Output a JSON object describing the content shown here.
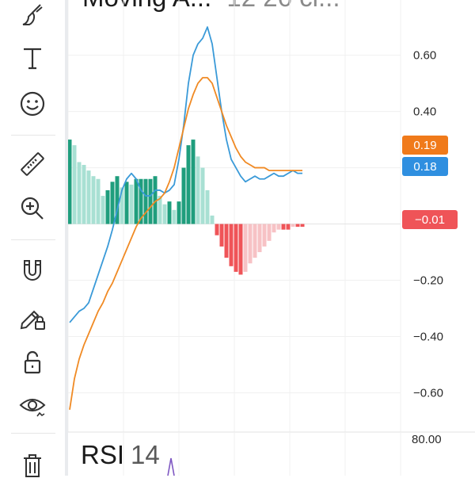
{
  "toolbar": {
    "tools": [
      {
        "icon": "brush-icon",
        "label": "Brush"
      },
      {
        "icon": "text-icon",
        "label": "Text"
      },
      {
        "icon": "emoji-icon",
        "label": "Emoji"
      },
      {
        "icon": "ruler-icon",
        "label": "Measure"
      },
      {
        "icon": "zoom-in-icon",
        "label": "Zoom In"
      },
      {
        "icon": "magnet-icon",
        "label": "Magnet"
      },
      {
        "icon": "lock-drawing-icon",
        "label": "Lock Drawings"
      },
      {
        "icon": "unlock-icon",
        "label": "Lock"
      },
      {
        "icon": "eye-icon",
        "label": "Hide"
      },
      {
        "icon": "trash-icon",
        "label": "Remove"
      }
    ]
  },
  "pane": {
    "title": "Moving A...",
    "params": "12 26 cl..."
  },
  "badges": {
    "signal": {
      "text": "0.19",
      "color": "#f07a1a"
    },
    "macd": {
      "text": "0.18",
      "color": "#2f8fe0"
    },
    "histogram": {
      "text": "−0.01",
      "color": "#ef5458"
    }
  },
  "rsi": {
    "name": "RSI",
    "length": "14",
    "top_label": "80.00"
  },
  "chart_data": {
    "type": "line",
    "title": "",
    "ylim": [
      -0.7,
      0.72
    ],
    "y_ticks": [
      0.6,
      0.4,
      0.2,
      -0.2,
      -0.4,
      -0.6
    ],
    "y_tick_labels": [
      "0.60",
      "0.40",
      "",
      "−0.20",
      "−0.40",
      "−0.60"
    ],
    "grid": true,
    "series": [
      {
        "color": "#3a9ad8",
        "values": [
          -0.35,
          -0.33,
          -0.31,
          -0.3,
          -0.28,
          -0.23,
          -0.18,
          -0.13,
          -0.08,
          -0.02,
          0.05,
          0.12,
          0.16,
          0.18,
          0.16,
          0.12,
          0.1,
          0.1,
          0.12,
          0.12,
          0.11,
          0.12,
          0.14,
          0.23,
          0.35,
          0.5,
          0.6,
          0.64,
          0.66,
          0.7,
          0.64,
          0.52,
          0.4,
          0.3,
          0.23,
          0.2,
          0.17,
          0.15,
          0.16,
          0.17,
          0.16,
          0.16,
          0.17,
          0.18,
          0.17,
          0.17,
          0.18,
          0.19,
          0.18,
          0.18
        ]
      },
      {
        "color": "#f08a24",
        "values": [
          -0.66,
          -0.55,
          -0.48,
          -0.43,
          -0.39,
          -0.35,
          -0.31,
          -0.28,
          -0.24,
          -0.21,
          -0.17,
          -0.13,
          -0.09,
          -0.05,
          -0.01,
          0.02,
          0.04,
          0.06,
          0.08,
          0.09,
          0.11,
          0.15,
          0.2,
          0.27,
          0.34,
          0.41,
          0.46,
          0.5,
          0.52,
          0.52,
          0.5,
          0.45,
          0.4,
          0.35,
          0.31,
          0.27,
          0.24,
          0.22,
          0.21,
          0.2,
          0.2,
          0.2,
          0.19,
          0.19,
          0.19,
          0.19,
          0.19,
          0.19,
          0.19,
          0.19
        ]
      }
    ],
    "histogram": [
      0.3,
      0.28,
      0.22,
      0.21,
      0.19,
      0.17,
      0.16,
      0.1,
      0.12,
      0.15,
      0.17,
      0.13,
      0.15,
      0.14,
      0.16,
      0.16,
      0.16,
      0.16,
      0.17,
      0.1,
      0.07,
      0.08,
      0.05,
      0.08,
      0.2,
      0.28,
      0.3,
      0.24,
      0.2,
      0.12,
      0.03,
      -0.04,
      -0.08,
      -0.12,
      -0.15,
      -0.17,
      -0.18,
      -0.17,
      -0.14,
      -0.12,
      -0.1,
      -0.08,
      -0.06,
      -0.03,
      -0.02,
      -0.02,
      -0.02,
      -0.01,
      -0.01,
      -0.01
    ],
    "histogram_colors": {
      "pos_rising": "#1f9e7d",
      "pos_falling": "#a8e0d3",
      "neg_falling": "#ef5458",
      "neg_rising": "#f7c2c5"
    }
  }
}
